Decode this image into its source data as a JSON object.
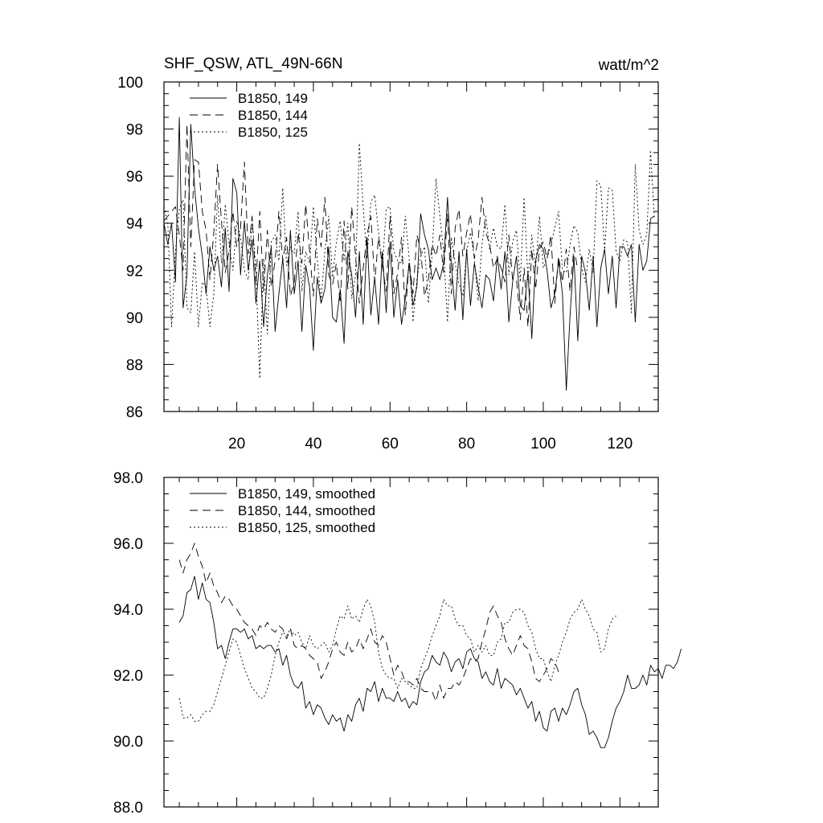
{
  "chart_data": [
    {
      "type": "line",
      "title": "SHF_QSW, ATL_49N-66N",
      "units": "watt/m^2",
      "xlim": [
        1,
        130
      ],
      "ylim": [
        86,
        100
      ],
      "y_ticks": [
        86,
        88,
        90,
        92,
        94,
        96,
        98,
        100
      ],
      "y_tick_labels": [
        "86",
        "88",
        "90",
        "92",
        "94",
        "96",
        "98",
        "100"
      ],
      "x_ticks": [
        20,
        40,
        60,
        80,
        100,
        120
      ],
      "x_tick_labels": [
        "20",
        "40",
        "60",
        "80",
        "100",
        "120"
      ],
      "legend": [
        "B1850, 149",
        "B1850, 144",
        "B1850, 125"
      ],
      "legend_position": "top-left",
      "series": [
        {
          "name": "B1850, 149",
          "style": "solid",
          "x_start": 1,
          "values": [
            94.0,
            93.1,
            94.0,
            91.5,
            98.5,
            90.4,
            91.8,
            98.2,
            95.5,
            93.8,
            92.6,
            91.0,
            93.0,
            92.0,
            92.6,
            91.3,
            93.8,
            91.1,
            95.9,
            95.3,
            91.8,
            94.1,
            92.0,
            93.3,
            90.6,
            92.4,
            89.6,
            91.8,
            93.0,
            89.4,
            91.0,
            92.5,
            90.4,
            93.7,
            91.0,
            92.4,
            89.4,
            92.2,
            91.3,
            88.6,
            91.7,
            90.6,
            91.2,
            93.0,
            90.0,
            89.8,
            91.2,
            88.9,
            92.8,
            91.8,
            90.0,
            92.8,
            89.7,
            93.4,
            90.1,
            91.7,
            89.7,
            92.8,
            90.2,
            93.2,
            90.0,
            91.6,
            89.7,
            90.8,
            92.3,
            90.5,
            91.3,
            94.4,
            93.5,
            92.9,
            91.6,
            92.1,
            91.6,
            92.3,
            95.1,
            92.2,
            90.3,
            92.8,
            89.9,
            92.9,
            90.5,
            92.3,
            91.3,
            90.4,
            91.8,
            91.6,
            90.7,
            92.6,
            91.2,
            92.8,
            89.8,
            91.5,
            92.6,
            90.5,
            90.3,
            91.9,
            89.1,
            92.4,
            93.1,
            92.9,
            92.0,
            90.4,
            91.0,
            92.4,
            91.0,
            86.9,
            90.1,
            92.6,
            89.0,
            92.6,
            91.9,
            90.3,
            92.6,
            89.6,
            92.1,
            92.9,
            91.0,
            92.6,
            90.4,
            93.0,
            93.0,
            92.6,
            93.1,
            89.8,
            93.1,
            92.0,
            92.4,
            94.2,
            94.3
          ]
        },
        {
          "name": "B1850, 144",
          "style": "dashed",
          "x_start": 1,
          "values": [
            94.1,
            94.3,
            94.5,
            94.7,
            93.5,
            92.0,
            98.2,
            93.0,
            96.7,
            96.6,
            94.5,
            93.7,
            91.6,
            93.6,
            96.5,
            94.1,
            91.9,
            92.8,
            94.5,
            93.0,
            93.8,
            96.6,
            92.7,
            94.3,
            91.4,
            94.5,
            91.1,
            93.7,
            91.3,
            92.4,
            94.5,
            92.4,
            93.4,
            90.9,
            91.5,
            93.6,
            92.3,
            94.8,
            92.8,
            90.9,
            94.2,
            93.0,
            95.1,
            91.8,
            91.4,
            92.3,
            90.6,
            94.1,
            91.2,
            94.7,
            92.6,
            90.6,
            92.1,
            93.5,
            94.3,
            91.5,
            93.4,
            92.2,
            91.1,
            94.3,
            91.0,
            91.9,
            93.4,
            90.1,
            92.4,
            91.0,
            93.5,
            92.9,
            90.9,
            91.6,
            93.1,
            92.6,
            93.5,
            91.9,
            94.4,
            91.0,
            93.8,
            94.6,
            92.6,
            93.6,
            94.4,
            92.5,
            93.3,
            95.1,
            93.6,
            93.1,
            92.1,
            92.5,
            92.1,
            91.5,
            93.5,
            91.6,
            91.6,
            89.9,
            92.1,
            89.6,
            92.9,
            91.2,
            92.9,
            93.2,
            92.5,
            93.5,
            90.6,
            92.6,
            91.5,
            92.9,
            91.1,
            93.0,
            92.0
          ]
        },
        {
          "name": "B1850, 125",
          "style": "dotted",
          "x_start": 1,
          "values": [
            94.7,
            94.0,
            89.6,
            92.8,
            94.6,
            95.0,
            90.4,
            90.2,
            92.8,
            89.6,
            91.5,
            91.3,
            89.6,
            91.0,
            95.2,
            92.3,
            94.8,
            93.1,
            92.0,
            94.1,
            93.4,
            92.0,
            91.6,
            94.2,
            92.0,
            87.4,
            92.5,
            89.3,
            93.2,
            93.5,
            92.4,
            95.5,
            92.2,
            93.0,
            92.7,
            94.5,
            91.1,
            92.8,
            92.3,
            94.7,
            92.5,
            90.7,
            92.8,
            94.3,
            91.7,
            93.2,
            94.1,
            92.4,
            94.0,
            90.8,
            91.8,
            97.4,
            94.7,
            92.5,
            94.9,
            95.2,
            93.6,
            92.1,
            94.6,
            94.7,
            92.8,
            92.4,
            92.3,
            94.3,
            92.5,
            89.8,
            91.6,
            92.6,
            93.0,
            90.6,
            92.7,
            95.9,
            94.3,
            92.8,
            89.8,
            93.4,
            92.3,
            91.4,
            90.9,
            92.8,
            93.6,
            92.5,
            90.7,
            93.1,
            94.3,
            92.9,
            93.8,
            93.0,
            92.9,
            94.8,
            91.8,
            93.2,
            93.7,
            91.5,
            95.1,
            91.6,
            93.5,
            92.1,
            94.3,
            92.1,
            92.5,
            93.1,
            93.8,
            94.5,
            92.0,
            91.9,
            93.1,
            93.9,
            93.6,
            92.1,
            91.5,
            92.9,
            91.9,
            95.8,
            95.6,
            92.8,
            95.5,
            95.4,
            92.8,
            92.4,
            93.3,
            93.2,
            90.2,
            96.5,
            93.7,
            93.1,
            93.5,
            97.1,
            94.2
          ]
        }
      ]
    },
    {
      "type": "line",
      "title": "",
      "xlim": [
        1,
        130
      ],
      "ylim": [
        88,
        98
      ],
      "y_ticks": [
        88,
        90,
        92,
        94,
        96,
        98
      ],
      "y_tick_labels": [
        "88.0",
        "90.0",
        "92.0",
        "94.0",
        "96.0",
        "98.0"
      ],
      "x_ticks": [
        20,
        40,
        60,
        80,
        100,
        120
      ],
      "x_tick_labels": [],
      "legend": [
        "B1850, 149, smoothed",
        "B1850, 144, smoothed",
        "B1850, 125, smoothed"
      ],
      "legend_position": "top-left",
      "series": [
        {
          "name": "B1850, 149, smoothed",
          "style": "solid",
          "x_start": 5,
          "values": [
            93.6,
            93.8,
            94.5,
            94.6,
            95.0,
            94.3,
            94.8,
            94.3,
            94.2,
            93.6,
            92.8,
            92.9,
            92.5,
            93.0,
            93.4,
            93.4,
            93.3,
            93.4,
            93.1,
            93.2,
            92.8,
            92.9,
            92.8,
            92.9,
            92.9,
            92.7,
            92.8,
            92.3,
            92.6,
            92.0,
            91.7,
            91.6,
            91.8,
            91.0,
            91.2,
            90.8,
            91.1,
            91.0,
            90.7,
            90.5,
            90.8,
            90.6,
            90.7,
            90.3,
            90.8,
            90.6,
            91.1,
            91.3,
            90.9,
            91.6,
            91.5,
            91.8,
            91.2,
            91.6,
            91.3,
            91.3,
            91.2,
            91.5,
            91.2,
            91.3,
            91.0,
            91.2,
            91.1,
            91.8,
            92.1,
            92.2,
            92.6,
            92.4,
            92.3,
            92.7,
            92.5,
            92.1,
            92.4,
            92.5,
            92.2,
            92.7,
            92.8,
            92.5,
            92.4,
            91.9,
            92.1,
            91.8,
            91.7,
            92.2,
            91.6,
            91.9,
            91.8,
            91.7,
            91.4,
            91.6,
            91.3,
            91.0,
            91.2,
            90.6,
            90.9,
            90.4,
            90.3,
            90.9,
            91.0,
            90.6,
            91.0,
            90.8,
            91.1,
            91.5,
            91.6,
            91.1,
            90.8,
            90.2,
            90.3,
            90.1,
            89.8,
            89.8,
            90.1,
            90.6,
            91.0,
            91.2,
            91.5,
            92.0,
            91.6,
            91.6,
            91.7,
            92.0,
            91.7,
            92.3,
            92.1,
            92.2,
            91.9,
            92.3,
            92.3,
            92.2,
            92.4,
            92.8
          ]
        },
        {
          "name": "B1850, 144, smoothed",
          "style": "dashed",
          "x_start": 5,
          "values": [
            95.5,
            95.1,
            95.5,
            95.7,
            96.0,
            95.6,
            95.3,
            94.8,
            95.1,
            94.7,
            94.5,
            94.2,
            94.4,
            94.3,
            94.1,
            94.0,
            93.8,
            93.6,
            93.5,
            93.4,
            93.2,
            93.5,
            93.4,
            93.6,
            93.4,
            93.3,
            93.5,
            93.4,
            93.1,
            93.4,
            92.9,
            92.8,
            92.9,
            92.8,
            92.6,
            92.5,
            92.4,
            91.9,
            92.1,
            92.4,
            92.8,
            93.0,
            92.7,
            92.6,
            93.0,
            92.7,
            92.8,
            93.1,
            92.8,
            93.1,
            93.4,
            93.0,
            92.9,
            93.2,
            93.0,
            92.5,
            92.0,
            92.3,
            92.1,
            91.8,
            91.8,
            91.7,
            91.9,
            91.6,
            91.5,
            91.5,
            91.5,
            91.2,
            91.7,
            91.3,
            91.6,
            91.6,
            91.8,
            91.7,
            91.9,
            92.2,
            92.5,
            92.4,
            92.5,
            93.0,
            93.4,
            93.9,
            94.1,
            93.8,
            93.6,
            93.1,
            92.8,
            92.6,
            92.9,
            93.2,
            92.9,
            92.8,
            92.4,
            91.9,
            91.8,
            92.0,
            92.2,
            92.5,
            92.4,
            92.1
          ]
        },
        {
          "name": "B1850, 125, smoothed",
          "style": "dotted",
          "x_start": 5,
          "values": [
            91.3,
            90.7,
            90.7,
            90.8,
            90.6,
            90.6,
            90.8,
            90.9,
            90.9,
            91.1,
            91.5,
            91.9,
            92.3,
            92.7,
            93.1,
            93.0,
            92.6,
            92.2,
            91.9,
            91.6,
            91.5,
            91.3,
            91.3,
            91.6,
            92.0,
            92.6,
            93.0,
            93.3,
            93.2,
            93.4,
            93.2,
            93.3,
            93.0,
            92.8,
            93.2,
            92.9,
            92.8,
            92.9,
            93.0,
            92.7,
            92.9,
            93.4,
            93.8,
            93.7,
            94.1,
            93.7,
            93.8,
            93.6,
            94.0,
            94.3,
            94.1,
            93.6,
            92.7,
            92.2,
            92.0,
            91.9,
            91.9,
            91.6,
            91.9,
            91.8,
            91.7,
            91.6,
            91.6,
            92.2,
            92.5,
            92.8,
            93.2,
            93.5,
            93.8,
            94.3,
            94.1,
            94.1,
            93.7,
            93.5,
            93.5,
            93.2,
            93.1,
            92.7,
            92.9,
            92.7,
            92.9,
            92.6,
            92.6,
            93.0,
            93.1,
            93.6,
            93.6,
            93.9,
            94.0,
            94.0,
            93.9,
            93.5,
            93.3,
            92.8,
            92.5,
            92.5,
            92.1,
            91.8,
            92.3,
            92.6,
            93.0,
            93.3,
            93.7,
            93.9,
            94.0,
            94.3,
            94.0,
            93.8,
            93.4,
            93.3,
            92.7,
            92.8,
            93.4,
            93.7,
            93.8
          ]
        }
      ]
    }
  ]
}
